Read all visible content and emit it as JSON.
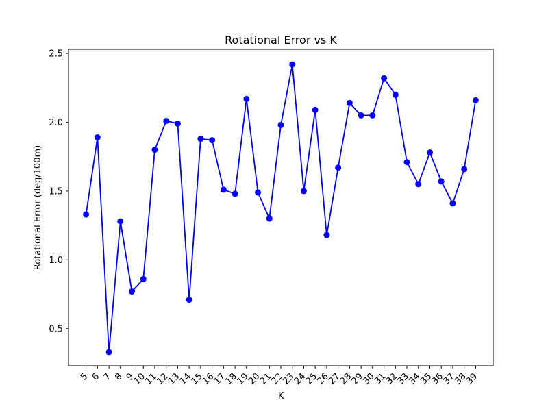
{
  "chart_data": {
    "type": "line",
    "title": "Rotational Error vs K",
    "xlabel": "K",
    "ylabel": "Rotational Error (deg/100m)",
    "ylim": [
      0.23,
      2.53
    ],
    "yticks": [
      0.5,
      1.0,
      1.5,
      2.0,
      2.5
    ],
    "grid": false,
    "line_color": "#0000ff",
    "x": [
      5,
      6,
      7,
      8,
      9,
      10,
      11,
      12,
      13,
      14,
      15,
      16,
      17,
      18,
      19,
      20,
      21,
      22,
      23,
      24,
      25,
      26,
      27,
      28,
      29,
      30,
      31,
      32,
      33,
      34,
      35,
      36,
      37,
      38,
      39
    ],
    "x_tick_labels": [
      "5",
      "6",
      "7",
      "8",
      "9",
      "10",
      "11",
      "12",
      "13",
      "14",
      "15",
      "16",
      "17",
      "18",
      "19",
      "20",
      "21",
      "22",
      "23",
      "24",
      "25",
      "26",
      "27",
      "28",
      "29",
      "30",
      "31",
      "32",
      "33",
      "34",
      "35",
      "36",
      "37",
      "38",
      "39"
    ],
    "series": [
      {
        "values": [
          1.33,
          1.89,
          0.33,
          1.28,
          0.77,
          0.86,
          1.8,
          2.01,
          1.99,
          0.71,
          1.88,
          1.87,
          1.51,
          1.48,
          2.17,
          1.49,
          1.3,
          1.98,
          2.42,
          1.5,
          2.09,
          1.18,
          1.67,
          2.14,
          2.05,
          2.05,
          2.32,
          2.2,
          1.71,
          1.55,
          1.78,
          1.57,
          1.41,
          1.66,
          2.16
        ]
      }
    ]
  }
}
